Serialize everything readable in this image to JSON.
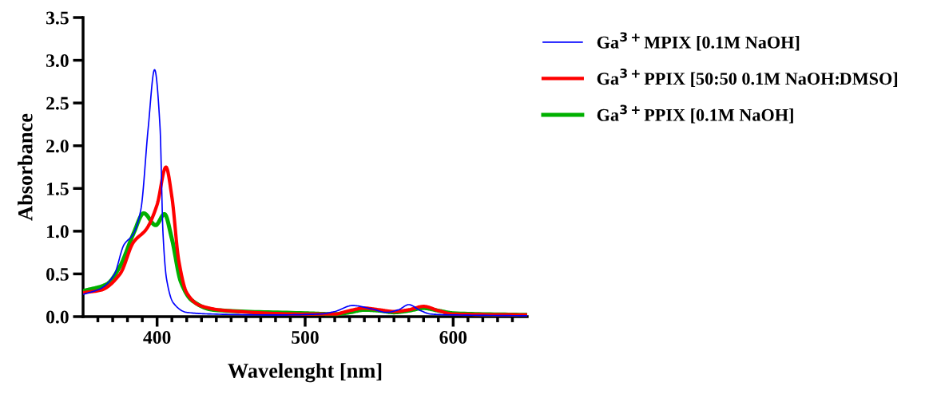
{
  "chart_data": {
    "type": "line",
    "xlabel": "Wavelenght [nm]",
    "ylabel": "Absorbance",
    "xlim": [
      350,
      650
    ],
    "ylim": [
      0,
      3.5
    ],
    "xticks": [
      {
        "value": 360,
        "label": null
      },
      {
        "value": 370,
        "label": null
      },
      {
        "value": 380,
        "label": null
      },
      {
        "value": 390,
        "label": null
      },
      400,
      {
        "value": 410,
        "label": null
      },
      {
        "value": 420,
        "label": null
      },
      {
        "value": 430,
        "label": null
      },
      {
        "value": 440,
        "label": null
      },
      {
        "value": 450,
        "label": null
      },
      {
        "value": 460,
        "label": null
      },
      {
        "value": 470,
        "label": null
      },
      {
        "value": 480,
        "label": null
      },
      {
        "value": 490,
        "label": null
      },
      500,
      {
        "value": 510,
        "label": null
      },
      {
        "value": 520,
        "label": null
      },
      {
        "value": 530,
        "label": null
      },
      {
        "value": 540,
        "label": null
      },
      {
        "value": 550,
        "label": null
      },
      {
        "value": 560,
        "label": null
      },
      {
        "value": 570,
        "label": null
      },
      {
        "value": 580,
        "label": null
      },
      {
        "value": 590,
        "label": null
      },
      600,
      {
        "value": 610,
        "label": null
      },
      {
        "value": 620,
        "label": null
      },
      {
        "value": 630,
        "label": null
      },
      {
        "value": 640,
        "label": null
      }
    ],
    "yticks": [
      {
        "value": 0,
        "label": "0.0"
      },
      {
        "value": 0.5,
        "label": "0.5"
      },
      {
        "value": 1,
        "label": "1.0"
      },
      {
        "value": 1.5,
        "label": "1.5"
      },
      {
        "value": 2,
        "label": "2.0"
      },
      {
        "value": 2.5,
        "label": "2.5"
      },
      {
        "value": 3,
        "label": "3.0"
      },
      {
        "value": 3.5,
        "label": "3.5"
      }
    ],
    "grid": false,
    "legend": "right",
    "marker": "none",
    "line_style": "solid",
    "series": [
      {
        "name": "Ga$^{3+}$MPIX [0.1M NaOH]",
        "color": "#0000ff",
        "x": [
          350,
          362,
          371,
          377.6,
          384,
          389,
          394,
          398.3,
          402,
          404,
          406.4,
          411,
          420,
          438,
          480,
          510,
          520,
          532,
          545,
          555,
          563,
          570,
          578,
          585,
          600,
          650
        ],
        "values": [
          0.26,
          0.33,
          0.49,
          0.84,
          0.97,
          1.25,
          2.21,
          2.89,
          2.21,
          0.97,
          0.44,
          0.16,
          0.05,
          0.03,
          0.02,
          0.03,
          0.06,
          0.13,
          0.09,
          0.05,
          0.08,
          0.14,
          0.07,
          0.03,
          0.02,
          0.01
        ]
      },
      {
        "name": "Ga$^{3+}$PPIX [50:50 0.1M NaOH:DMSO]",
        "color": "#ff0000",
        "x": [
          350,
          362,
          375,
          384,
          393,
          400,
          406,
          410,
          414.6,
          420,
          429,
          447,
          500,
          520,
          530,
          540,
          550,
          560,
          570,
          580,
          590,
          600,
          650
        ],
        "values": [
          0.28,
          0.31,
          0.5,
          0.87,
          1.03,
          1.31,
          1.75,
          1.4,
          0.66,
          0.28,
          0.13,
          0.07,
          0.03,
          0.03,
          0.07,
          0.1,
          0.08,
          0.06,
          0.08,
          0.12,
          0.07,
          0.03,
          0.02
        ]
      },
      {
        "name": "Ga$^{3+}$PPIX [0.1M NaOH]",
        "color": "#00b000",
        "x": [
          350,
          366,
          375,
          384,
          391,
          399,
          405,
          410,
          416,
          423.5,
          438,
          500,
          520,
          530,
          540,
          550,
          560,
          570,
          580,
          590,
          600,
          650
        ],
        "values": [
          0.3,
          0.38,
          0.59,
          0.97,
          1.21,
          1.07,
          1.2,
          0.91,
          0.41,
          0.19,
          0.08,
          0.04,
          0.03,
          0.05,
          0.08,
          0.07,
          0.05,
          0.07,
          0.1,
          0.07,
          0.04,
          0.02
        ]
      }
    ]
  }
}
